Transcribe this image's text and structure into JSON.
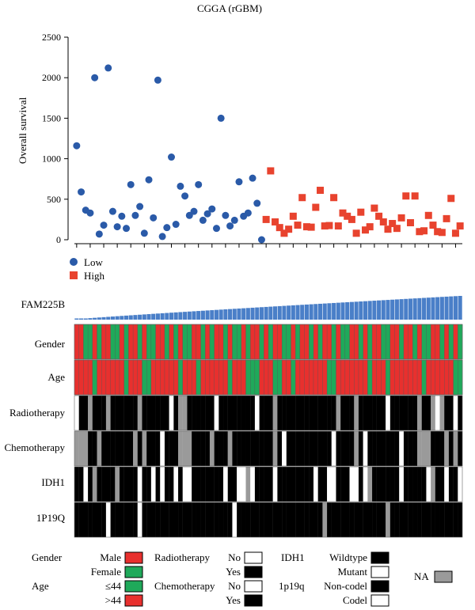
{
  "chart_data": {
    "type": "scatter",
    "title": "CGGA (rGBM)",
    "ylabel": "Overall survival",
    "ylim": [
      0,
      2500
    ],
    "yticks": [
      0,
      500,
      1000,
      1500,
      2000,
      2500
    ],
    "series": [
      {
        "name": "Low",
        "color": "#2a5aa8",
        "marker": "circle",
        "x": [
          1,
          2,
          3,
          4,
          5,
          6,
          7,
          8,
          9,
          10,
          11,
          12,
          13,
          14,
          15,
          16,
          17,
          18,
          19,
          20,
          21,
          22,
          23,
          24,
          25,
          26,
          27,
          28,
          29,
          30,
          31,
          32,
          33,
          34,
          35,
          36,
          37,
          38,
          39,
          40,
          41,
          42
        ],
        "y": [
          1160,
          590,
          365,
          330,
          2000,
          70,
          180,
          2120,
          350,
          160,
          290,
          140,
          680,
          300,
          410,
          80,
          740,
          270,
          1970,
          40,
          150,
          1020,
          190,
          660,
          540,
          300,
          350,
          680,
          240,
          320,
          380,
          140,
          1500,
          300,
          170,
          240,
          715,
          290,
          330,
          760,
          450,
          0
        ]
      },
      {
        "name": "High",
        "color": "#e8432e",
        "marker": "square",
        "x": [
          43,
          44,
          45,
          46,
          47,
          48,
          49,
          50,
          51,
          52,
          53,
          54,
          55,
          56,
          57,
          58,
          59,
          60,
          61,
          62,
          63,
          64,
          65,
          66,
          67,
          68,
          69,
          70,
          71,
          72,
          73,
          74,
          75,
          76,
          77,
          78,
          79,
          80,
          81,
          82,
          83,
          84,
          85,
          86
        ],
        "y": [
          250,
          850,
          220,
          150,
          80,
          130,
          290,
          180,
          520,
          160,
          155,
          400,
          610,
          170,
          175,
          520,
          170,
          330,
          290,
          250,
          80,
          340,
          120,
          160,
          390,
          290,
          220,
          130,
          200,
          140,
          270,
          540,
          210,
          540,
          100,
          110,
          300,
          180,
          100,
          90,
          260,
          510,
          80,
          170
        ]
      }
    ],
    "tracks": {
      "labels": [
        "FAM225B",
        "Gender",
        "Age",
        "Radiotherapy",
        "Chemotherapy",
        "IDH1",
        "1P19Q"
      ],
      "n": 86,
      "gender": [
        "M",
        "M",
        "F",
        "F",
        "M",
        "F",
        "M",
        "M",
        "F",
        "F",
        "M",
        "F",
        "M",
        "M",
        "F",
        "M",
        "F",
        "F",
        "M",
        "M",
        "F",
        "M",
        "F",
        "M",
        "F",
        "F",
        "M",
        "M",
        "F",
        "M",
        "F",
        "M",
        "M",
        "F",
        "M",
        "F",
        "F",
        "M",
        "F",
        "M",
        "M",
        "F",
        "M",
        "F",
        "M",
        "M",
        "F",
        "F",
        "M",
        "F",
        "M",
        "M",
        "F",
        "M",
        "F",
        "M",
        "M",
        "F",
        "M",
        "F",
        "F",
        "M",
        "M",
        "F",
        "M",
        "F",
        "M",
        "M",
        "F",
        "F",
        "M",
        "M",
        "F",
        "M",
        "M",
        "F",
        "M",
        "F",
        "F",
        "M",
        "M",
        "F",
        "M",
        "F",
        "M",
        "F"
      ],
      "age": [
        ">44",
        ">44",
        ">44",
        ">44",
        "≤44",
        ">44",
        ">44",
        ">44",
        ">44",
        ">44",
        ">44",
        "≤44",
        ">44",
        ">44",
        ">44",
        "≤44",
        "≤44",
        ">44",
        ">44",
        ">44",
        ">44",
        ">44",
        ">44",
        "≤44",
        ">44",
        ">44",
        ">44",
        "≤44",
        ">44",
        ">44",
        ">44",
        ">44",
        ">44",
        ">44",
        "≤44",
        ">44",
        ">44",
        ">44",
        "≤44",
        "≤44",
        "≤44",
        ">44",
        ">44",
        ">44",
        "≤44",
        "≤44",
        ">44",
        ">44",
        "≤44",
        ">44",
        ">44",
        ">44",
        ">44",
        ">44",
        ">44",
        ">44",
        "≤44",
        "≤44",
        ">44",
        ">44",
        ">44",
        ">44",
        ">44",
        ">44",
        ">44",
        "≤44",
        ">44",
        ">44",
        ">44",
        "≤44",
        ">44",
        ">44",
        ">44",
        ">44",
        ">44",
        ">44",
        ">44",
        "≤44",
        ">44",
        ">44",
        ">44",
        ">44",
        ">44",
        ">44",
        "≤44",
        "≤44"
      ],
      "radiotherapy": [
        "No",
        "Yes",
        "Yes",
        "NA",
        "Yes",
        "Yes",
        "Yes",
        "NA",
        "Yes",
        "Yes",
        "Yes",
        "Yes",
        "Yes",
        "Yes",
        "NA",
        "Yes",
        "Yes",
        "Yes",
        "Yes",
        "Yes",
        "Yes",
        "No",
        "Yes",
        "NA",
        "NA",
        "Yes",
        "Yes",
        "Yes",
        "Yes",
        "Yes",
        "Yes",
        "No",
        "Yes",
        "Yes",
        "Yes",
        "Yes",
        "Yes",
        "Yes",
        "Yes",
        "Yes",
        "No",
        "Yes",
        "Yes",
        "Yes",
        "NA",
        "Yes",
        "Yes",
        "Yes",
        "Yes",
        "Yes",
        "Yes",
        "Yes",
        "Yes",
        "Yes",
        "Yes",
        "Yes",
        "Yes",
        "Yes",
        "NA",
        "Yes",
        "Yes",
        "Yes",
        "NA",
        "Yes",
        "Yes",
        "Yes",
        "Yes",
        "Yes",
        "Yes",
        "No",
        "Yes",
        "Yes",
        "Yes",
        "Yes",
        "Yes",
        "Yes",
        "NA",
        "Yes",
        "Yes",
        "NA",
        "No",
        "NA",
        "Yes",
        "Yes",
        "No",
        "Yes"
      ],
      "chemotherapy": [
        "NA",
        "NA",
        "NA",
        "Yes",
        "Yes",
        "NA",
        "Yes",
        "Yes",
        "Yes",
        "Yes",
        "Yes",
        "Yes",
        "Yes",
        "NA",
        "Yes",
        "NA",
        "Yes",
        "Yes",
        "Yes",
        "No",
        "Yes",
        "Yes",
        "Yes",
        "NA",
        "NA",
        "NA",
        "Yes",
        "Yes",
        "Yes",
        "Yes",
        "NA",
        "Yes",
        "Yes",
        "Yes",
        "NA",
        "Yes",
        "Yes",
        "Yes",
        "Yes",
        "Yes",
        "Yes",
        "Yes",
        "Yes",
        "Yes",
        "NA",
        "Yes",
        "No",
        "Yes",
        "Yes",
        "Yes",
        "Yes",
        "Yes",
        "Yes",
        "Yes",
        "Yes",
        "Yes",
        "Yes",
        "No",
        "Yes",
        "Yes",
        "Yes",
        "Yes",
        "NA",
        "Yes",
        "No",
        "Yes",
        "Yes",
        "Yes",
        "Yes",
        "Yes",
        "Yes",
        "Yes",
        "No",
        "Yes",
        "Yes",
        "Yes",
        "NA",
        "NA",
        "NA",
        "Yes",
        "Yes",
        "Yes",
        "NA",
        "Yes",
        "NA",
        "Yes"
      ],
      "idh1": [
        "Wildtype",
        "Wildtype",
        "Mutant",
        "Wildtype",
        "NA",
        "Wildtype",
        "Wildtype",
        "Wildtype",
        "Wildtype",
        "NA",
        "Wildtype",
        "Wildtype",
        "Wildtype",
        "Wildtype",
        "Mutant",
        "Wildtype",
        "Wildtype",
        "Mutant",
        "Wildtype",
        "Mutant",
        "Wildtype",
        "Wildtype",
        "Mutant",
        "Wildtype",
        "Mutant",
        "Mutant",
        "Wildtype",
        "Wildtype",
        "Wildtype",
        "Wildtype",
        "Wildtype",
        "Wildtype",
        "Wildtype",
        "Mutant",
        "Wildtype",
        "Wildtype",
        "Mutant",
        "Mutant",
        "NA",
        "Mutant",
        "Wildtype",
        "Wildtype",
        "Wildtype",
        "Wildtype",
        "Mutant",
        "Wildtype",
        "Wildtype",
        "Wildtype",
        "Wildtype",
        "Wildtype",
        "Wildtype",
        "Wildtype",
        "Wildtype",
        "Mutant",
        "Wildtype",
        "Wildtype",
        "Mutant",
        "Mutant",
        "Wildtype",
        "Wildtype",
        "Wildtype",
        "Mutant",
        "Mutant",
        "Wildtype",
        "Mutant",
        "NA",
        "Wildtype",
        "Wildtype",
        "Wildtype",
        "Wildtype",
        "Wildtype",
        "Wildtype",
        "Mutant",
        "Wildtype",
        "Wildtype",
        "Wildtype",
        "Wildtype",
        "Wildtype",
        "Mutant",
        "NA",
        "Wildtype",
        "Wildtype",
        "Mutant",
        "Wildtype",
        "Wildtype",
        "Mutant"
      ],
      "p19q": [
        "Non-codel",
        "Non-codel",
        "Non-codel",
        "Non-codel",
        "Non-codel",
        "Non-codel",
        "Non-codel",
        "Codel",
        "Non-codel",
        "Non-codel",
        "Non-codel",
        "Non-codel",
        "Non-codel",
        "Non-codel",
        "Codel",
        "Non-codel",
        "Non-codel",
        "Non-codel",
        "Non-codel",
        "Non-codel",
        "Non-codel",
        "Non-codel",
        "Non-codel",
        "Non-codel",
        "Non-codel",
        "Non-codel",
        "Non-codel",
        "Non-codel",
        "Non-codel",
        "Non-codel",
        "Non-codel",
        "Non-codel",
        "Non-codel",
        "Non-codel",
        "Non-codel",
        "Codel",
        "Non-codel",
        "Non-codel",
        "Non-codel",
        "Non-codel",
        "Non-codel",
        "Non-codel",
        "Non-codel",
        "Non-codel",
        "Non-codel",
        "Non-codel",
        "Non-codel",
        "Non-codel",
        "Non-codel",
        "Non-codel",
        "Non-codel",
        "Non-codel",
        "Non-codel",
        "Non-codel",
        "Non-codel",
        "NA",
        "Non-codel",
        "Non-codel",
        "Non-codel",
        "Non-codel",
        "Non-codel",
        "Non-codel",
        "Non-codel",
        "Non-codel",
        "Non-codel",
        "Non-codel",
        "Non-codel",
        "Non-codel",
        "Non-codel",
        "NA",
        "Non-codel",
        "Non-codel",
        "Non-codel",
        "Non-codel",
        "Non-codel",
        "Non-codel",
        "Non-codel",
        "Non-codel",
        "Non-codel",
        "Non-codel",
        "Non-codel",
        "Non-codel",
        "Non-codel",
        "Non-codel",
        "Non-codel",
        "Non-codel"
      ]
    },
    "colors": {
      "male": "#e8302e",
      "female": "#1fa95a",
      "age_young": "#1fa95a",
      "age_old": "#e8302e",
      "yes": "#000000",
      "no": "#ffffff",
      "na": "#9a9a9a",
      "bar": "#4a7fc8"
    },
    "legend": {
      "gender": {
        "label": "Gender",
        "items": [
          {
            "label": "Male",
            "color": "#e8302e"
          },
          {
            "label": "Female",
            "color": "#1fa95a"
          }
        ]
      },
      "age": {
        "label": "Age",
        "items": [
          {
            "label": "≤44",
            "color": "#1fa95a"
          },
          {
            "label": ">44",
            "color": "#e8302e"
          }
        ]
      },
      "radiotherapy": {
        "label": "Radiotherapy",
        "items": [
          {
            "label": "No",
            "color": "#ffffff"
          },
          {
            "label": "Yes",
            "color": "#000000"
          }
        ]
      },
      "chemotherapy": {
        "label": "Chemotherapy",
        "items": [
          {
            "label": "No",
            "color": "#ffffff"
          },
          {
            "label": "Yes",
            "color": "#000000"
          }
        ]
      },
      "idh1": {
        "label": "IDH1",
        "items": [
          {
            "label": "Wildtype",
            "color": "#000000"
          },
          {
            "label": "Mutant",
            "color": "#ffffff"
          }
        ]
      },
      "p19q": {
        "label": "1p19q",
        "items": [
          {
            "label": "Non-codel",
            "color": "#000000"
          },
          {
            "label": "Codel",
            "color": "#ffffff"
          }
        ]
      },
      "na": {
        "label": "NA",
        "color": "#9a9a9a"
      }
    }
  }
}
